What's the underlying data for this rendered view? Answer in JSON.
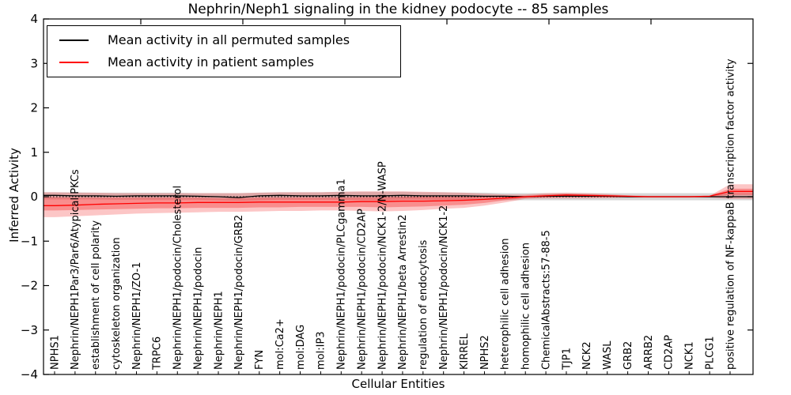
{
  "figure": {
    "title": "Nephrin/Neph1 signaling in the kidney podocyte -- 85 samples",
    "xlabel": "Cellular Entities",
    "ylabel": "Inferred Activity"
  },
  "legend": {
    "entries": [
      {
        "label": "Mean activity in all permuted samples",
        "color": "#000000"
      },
      {
        "label": "Mean activity in patient samples",
        "color": "#ff0000"
      }
    ]
  },
  "chart_data": {
    "type": "line",
    "title": "Nephrin/Neph1 signaling in the kidney podocyte -- 85 samples",
    "xlabel": "Cellular Entities",
    "ylabel": "Inferred Activity",
    "ylim": [
      -4,
      4
    ],
    "yticks": [
      -4,
      -3,
      -2,
      -1,
      0,
      1,
      2,
      3,
      4
    ],
    "grid": false,
    "legend_position": "upper left",
    "zero_line": {
      "style": "dotted",
      "color": "#000000",
      "y": 0
    },
    "categories": [
      "NPHS1",
      "Nephrin/NEPH1Par3/Par6/Atypical PKCs",
      "establishment of cell polarity",
      "cytoskeleton organization",
      "Nephrin/NEPH1/ZO-1",
      "TRPC6",
      "Nephrin/NEPH1/podocin/Cholesterol",
      "Nephrin/NEPH1/podocin",
      "Nephrin/NEPH1",
      "Nephrin/NEPH1/podocin/GRB2",
      "FYN",
      "mol:Ca2+",
      "mol:DAG",
      "mol:IP3",
      "Nephrin/NEPH1/podocin/PLCgamma1",
      "Nephrin/NEPH1/podocin/CD2AP",
      "Nephrin/NEPH1/podocin/NCK1-2/N-WASP",
      "Nephrin/NEPH1/beta Arrestin2",
      "regulation of endocytosis",
      "Nephrin/NEPH1/podocin/NCK1-2",
      "KIRREL",
      "NPHS2",
      "heterophilic cell adhesion",
      "homophilic cell adhesion",
      "ChemicalAbstracts:57-88-5",
      "TJP1",
      "NCK2",
      "WASL",
      "GRB2",
      "ARRB2",
      "CD2AP",
      "NCK1",
      "PLCG1",
      "positive regulation of NF-kappaB transcription factor activity"
    ],
    "series": [
      {
        "name": "Mean activity in all permuted samples",
        "color": "#000000",
        "values": [
          0.03,
          0.02,
          0.02,
          0.01,
          0.02,
          0.02,
          0.02,
          0.01,
          0.0,
          -0.02,
          0.02,
          0.03,
          0.02,
          0.02,
          0.03,
          0.02,
          0.02,
          0.03,
          0.02,
          0.02,
          0.02,
          0.01,
          0.01,
          0.0,
          0.01,
          0.01,
          0.01,
          0.01,
          0.0,
          0.0,
          0.0,
          0.0,
          0.0,
          0.0
        ]
      },
      {
        "name": "Mean activity in patient samples",
        "color": "#ff0000",
        "values": [
          -0.2,
          -0.19,
          -0.17,
          -0.16,
          -0.15,
          -0.14,
          -0.14,
          -0.13,
          -0.13,
          -0.13,
          -0.12,
          -0.12,
          -0.12,
          -0.12,
          -0.12,
          -0.11,
          -0.11,
          -0.1,
          -0.1,
          -0.09,
          -0.08,
          -0.06,
          -0.03,
          0.0,
          0.02,
          0.04,
          0.03,
          0.02,
          0.01,
          0.0,
          0.0,
          0.0,
          0.01,
          0.12
        ]
      }
    ],
    "bands": [
      {
        "name": "permuted-samples-range",
        "color": "rgba(130,130,130,0.32)",
        "high": [
          0.1,
          0.1,
          0.09,
          0.09,
          0.09,
          0.09,
          0.09,
          0.08,
          0.08,
          0.08,
          0.09,
          0.1,
          0.1,
          0.1,
          0.11,
          0.11,
          0.11,
          0.11,
          0.1,
          0.1,
          0.09,
          0.09,
          0.08,
          0.08,
          0.08,
          0.08,
          0.08,
          0.08,
          0.08,
          0.08,
          0.08,
          0.08,
          0.08,
          0.08
        ],
        "low": [
          -0.06,
          -0.06,
          -0.06,
          -0.07,
          -0.07,
          -0.07,
          -0.07,
          -0.07,
          -0.08,
          -0.09,
          -0.08,
          -0.07,
          -0.07,
          -0.07,
          -0.07,
          -0.08,
          -0.08,
          -0.07,
          -0.07,
          -0.07,
          -0.07,
          -0.07,
          -0.08,
          -0.08,
          -0.08,
          -0.08,
          -0.08,
          -0.08,
          -0.08,
          -0.08,
          -0.08,
          -0.08,
          -0.08,
          -0.08
        ]
      },
      {
        "name": "patient-samples-range-outer",
        "color": "rgba(244,50,50,0.28)",
        "high": [
          0.1,
          0.09,
          0.09,
          0.08,
          0.08,
          0.08,
          0.08,
          0.08,
          0.08,
          0.08,
          0.09,
          0.1,
          0.1,
          0.1,
          0.11,
          0.12,
          0.12,
          0.12,
          0.11,
          0.1,
          0.09,
          0.07,
          0.05,
          0.05,
          0.08,
          0.09,
          0.08,
          0.06,
          0.03,
          0.02,
          0.02,
          0.02,
          0.02,
          0.28
        ],
        "low": [
          -0.46,
          -0.44,
          -0.42,
          -0.4,
          -0.38,
          -0.37,
          -0.36,
          -0.35,
          -0.34,
          -0.34,
          -0.33,
          -0.32,
          -0.32,
          -0.31,
          -0.31,
          -0.32,
          -0.33,
          -0.32,
          -0.3,
          -0.27,
          -0.25,
          -0.2,
          -0.13,
          -0.05,
          -0.04,
          -0.04,
          -0.04,
          -0.03,
          -0.02,
          -0.02,
          -0.02,
          -0.02,
          -0.02,
          -0.05
        ]
      },
      {
        "name": "patient-samples-range-inner",
        "color": "rgba(244,50,50,0.38)",
        "high": [
          -0.01,
          -0.02,
          -0.02,
          -0.02,
          -0.02,
          -0.02,
          -0.02,
          -0.02,
          -0.03,
          -0.03,
          -0.02,
          -0.02,
          -0.02,
          -0.02,
          -0.02,
          -0.01,
          -0.01,
          0.0,
          0.0,
          0.0,
          0.0,
          0.0,
          0.01,
          0.02,
          0.05,
          0.06,
          0.05,
          0.04,
          0.02,
          0.01,
          0.01,
          0.01,
          0.02,
          0.18
        ],
        "low": [
          -0.31,
          -0.3,
          -0.29,
          -0.28,
          -0.27,
          -0.26,
          -0.26,
          -0.25,
          -0.25,
          -0.25,
          -0.24,
          -0.24,
          -0.23,
          -0.23,
          -0.23,
          -0.23,
          -0.24,
          -0.23,
          -0.22,
          -0.2,
          -0.18,
          -0.14,
          -0.08,
          -0.03,
          -0.01,
          0.0,
          0.0,
          -0.01,
          -0.01,
          -0.01,
          -0.01,
          -0.01,
          0.0,
          0.04
        ]
      }
    ]
  }
}
